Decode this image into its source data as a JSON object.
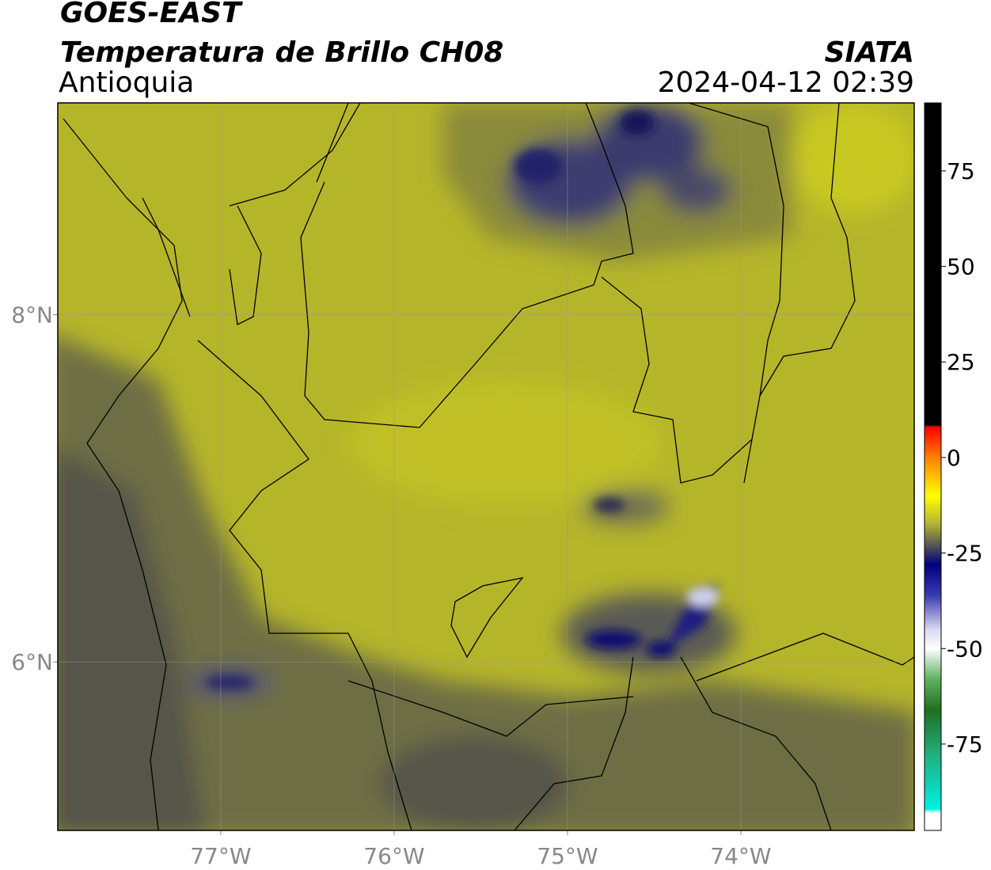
{
  "header": {
    "product": "GOES-EAST",
    "title": "Temperatura de Brillo CH08",
    "region": "Antioquia",
    "source": "SIATA",
    "datetime": "2024-04-12 02:39"
  },
  "map": {
    "xlim": [
      -77.94,
      -73.0
    ],
    "ylim": [
      5.03,
      9.22
    ],
    "xticks": [
      {
        "value": -77,
        "label": "77°W"
      },
      {
        "value": -76,
        "label": "76°W"
      },
      {
        "value": -75,
        "label": "75°W"
      },
      {
        "value": -74,
        "label": "74°W"
      }
    ],
    "yticks": [
      {
        "value": 8,
        "label": "8°N"
      },
      {
        "value": 6,
        "label": "6°N"
      }
    ],
    "grid": true
  },
  "colorbar": {
    "ylim": [
      -97.6,
      92.8
    ],
    "yticks": [
      75,
      50,
      25,
      0,
      -25,
      -50,
      -75
    ],
    "stops": [
      {
        "value": 92.8,
        "color": "#000000"
      },
      {
        "value": 8.5,
        "color": "#000000"
      },
      {
        "value": 8,
        "color": "#ff0000"
      },
      {
        "value": 0,
        "color": "#ff8000"
      },
      {
        "value": -10,
        "color": "#ffff00"
      },
      {
        "value": -17,
        "color": "#b8b830"
      },
      {
        "value": -23,
        "color": "#555555"
      },
      {
        "value": -28,
        "color": "#000080"
      },
      {
        "value": -36,
        "color": "#3a3ab0"
      },
      {
        "value": -45,
        "color": "#d8d8f0"
      },
      {
        "value": -50,
        "color": "#ffffff"
      },
      {
        "value": -58,
        "color": "#60b060"
      },
      {
        "value": -66,
        "color": "#207020"
      },
      {
        "value": -78,
        "color": "#20b080"
      },
      {
        "value": -92,
        "color": "#00f0e0"
      },
      {
        "value": -93,
        "color": "#ffffff"
      },
      {
        "value": -97.6,
        "color": "#ffffff"
      }
    ]
  }
}
